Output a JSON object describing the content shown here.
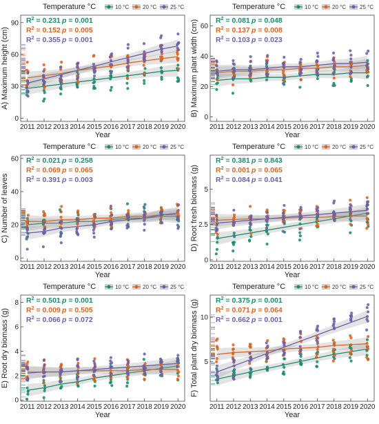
{
  "legend": {
    "title": "Temperature °C",
    "entries": [
      {
        "label": "10 °C",
        "color": "#1b8a6b"
      },
      {
        "label": "20 °C",
        "color": "#d9641e"
      },
      {
        "label": "25 °C",
        "color": "#6c5fa8"
      }
    ]
  },
  "chart_data": [
    {
      "type": "scatter",
      "ylabel": "A) Maximum height (cm)",
      "xlabel": "Year",
      "x": [
        2011,
        2012,
        2013,
        2014,
        2015,
        2016,
        2017,
        2018,
        2019,
        2020
      ],
      "ylim": [
        -3,
        97
      ],
      "yticks": [
        0,
        30,
        60,
        90
      ],
      "series": [
        {
          "name": "10 °C",
          "values": [
            28,
            30,
            32,
            34,
            36,
            38,
            40,
            42,
            44,
            45
          ],
          "r2": "0.231",
          "p": "0.001"
        },
        {
          "name": "20 °C",
          "values": [
            38,
            40,
            42,
            45,
            47,
            49,
            52,
            54,
            56,
            58
          ],
          "r2": "0.152",
          "p": "0.005"
        },
        {
          "name": "25 °C",
          "values": [
            33,
            37,
            41,
            45,
            49,
            53,
            57,
            61,
            65,
            68
          ],
          "r2": "0.355",
          "p": "0.001"
        }
      ]
    },
    {
      "type": "scatter",
      "ylabel": "B) Maximum plant width (cm)",
      "xlabel": "Year",
      "x": [
        2011,
        2012,
        2013,
        2014,
        2015,
        2016,
        2017,
        2018,
        2019,
        2020
      ],
      "ylim": [
        -3,
        67
      ],
      "yticks": [
        0,
        20,
        40,
        60
      ],
      "series": [
        {
          "name": "10 °C",
          "values": [
            24,
            25,
            25,
            26,
            26,
            27,
            28,
            28,
            29,
            29
          ],
          "r2": "0.081",
          "p": "0.048"
        },
        {
          "name": "20 °C",
          "values": [
            29,
            30,
            30,
            31,
            31,
            32,
            32,
            33,
            33,
            34
          ],
          "r2": "0.137",
          "p": "0.008"
        },
        {
          "name": "25 °C",
          "values": [
            30,
            31,
            31,
            32,
            33,
            33,
            34,
            35,
            35,
            36
          ],
          "r2": "0.103",
          "p": "0.023"
        }
      ]
    },
    {
      "type": "scatter",
      "ylabel": "C) Number of leaves",
      "xlabel": "Year",
      "x": [
        2011,
        2012,
        2013,
        2014,
        2015,
        2016,
        2017,
        2018,
        2019,
        2020
      ],
      "ylim": [
        -2,
        62
      ],
      "yticks": [
        0,
        20,
        40,
        60
      ],
      "series": [
        {
          "name": "10 °C",
          "values": [
            20,
            21,
            21,
            22,
            22,
            23,
            24,
            24,
            25,
            25
          ],
          "r2": "0.021",
          "p": "0.258"
        },
        {
          "name": "20 °C",
          "values": [
            22,
            22,
            23,
            23,
            24,
            24,
            25,
            25,
            26,
            26
          ],
          "r2": "0.069",
          "p": "0.065"
        },
        {
          "name": "25 °C",
          "values": [
            15,
            16,
            18,
            19,
            20,
            22,
            23,
            24,
            26,
            27
          ],
          "r2": "0.391",
          "p": "0.003"
        }
      ]
    },
    {
      "type": "scatter",
      "ylabel": "D) Root fresh biomass (g)",
      "xlabel": "Year",
      "x": [
        2011,
        2012,
        2013,
        2014,
        2015,
        2016,
        2017,
        2018,
        2019,
        2020
      ],
      "ylim": [
        -0.1,
        7.4
      ],
      "yticks": [
        0.0,
        2.5,
        5.0
      ],
      "series": [
        {
          "name": "10 °C",
          "values": [
            1.5,
            1.7,
            1.9,
            2.1,
            2.3,
            2.5,
            2.7,
            2.9,
            3.1,
            3.3
          ],
          "r2": "0.381",
          "p": "0.843"
        },
        {
          "name": "20 °C",
          "values": [
            2.8,
            2.85,
            2.9,
            2.9,
            2.95,
            3.0,
            3.0,
            3.05,
            3.1,
            3.1
          ],
          "r2": "0.001",
          "p": "0.065"
        },
        {
          "name": "25 °C",
          "values": [
            2.6,
            2.7,
            2.8,
            2.9,
            3.0,
            3.1,
            3.2,
            3.3,
            3.4,
            3.5
          ],
          "r2": "0.084",
          "p": "0.041"
        }
      ]
    },
    {
      "type": "scatter",
      "ylabel": "E) Root dry biomass (g)",
      "xlabel": "Year",
      "x": [
        2011,
        2012,
        2013,
        2014,
        2015,
        2016,
        2017,
        2018,
        2019,
        2020
      ],
      "ylim": [
        -0.1,
        8.6
      ],
      "yticks": [
        0,
        2,
        4,
        6,
        8
      ],
      "series": [
        {
          "name": "10 °C",
          "values": [
            0.8,
            1.0,
            1.3,
            1.5,
            1.8,
            2.0,
            2.2,
            2.4,
            2.6,
            2.8
          ],
          "r2": "0.501",
          "p": "0.001"
        },
        {
          "name": "20 °C",
          "values": [
            2.3,
            2.3,
            2.3,
            2.4,
            2.4,
            2.4,
            2.4,
            2.5,
            2.5,
            2.5
          ],
          "r2": "0.009",
          "p": "0.505"
        },
        {
          "name": "25 °C",
          "values": [
            2.2,
            2.3,
            2.3,
            2.4,
            2.5,
            2.6,
            2.7,
            2.8,
            2.9,
            3.0
          ],
          "r2": "0.066",
          "p": "0.072"
        }
      ]
    },
    {
      "type": "scatter",
      "ylabel": "F) Total plant dry biomass (g)",
      "xlabel": "Year",
      "x": [
        2011,
        2012,
        2013,
        2014,
        2015,
        2016,
        2017,
        2018,
        2019,
        2020
      ],
      "ylim": [
        0.5,
        12.5
      ],
      "yticks": [
        5,
        10
      ],
      "series": [
        {
          "name": "10 °C",
          "values": [
            3.0,
            3.4,
            3.8,
            4.2,
            4.6,
            5.0,
            5.4,
            5.8,
            6.1,
            6.4
          ],
          "r2": "0.375",
          "p": "0.001"
        },
        {
          "name": "20 °C",
          "values": [
            5.8,
            6.0,
            6.1,
            6.2,
            6.4,
            6.5,
            6.6,
            6.8,
            6.9,
            7.0
          ],
          "r2": "0.071",
          "p": "0.064"
        },
        {
          "name": "25 °C",
          "values": [
            3.8,
            4.5,
            5.2,
            5.9,
            6.6,
            7.3,
            8.0,
            8.7,
            9.4,
            10.1
          ],
          "r2": "0.662",
          "p": "0.001"
        }
      ]
    }
  ]
}
